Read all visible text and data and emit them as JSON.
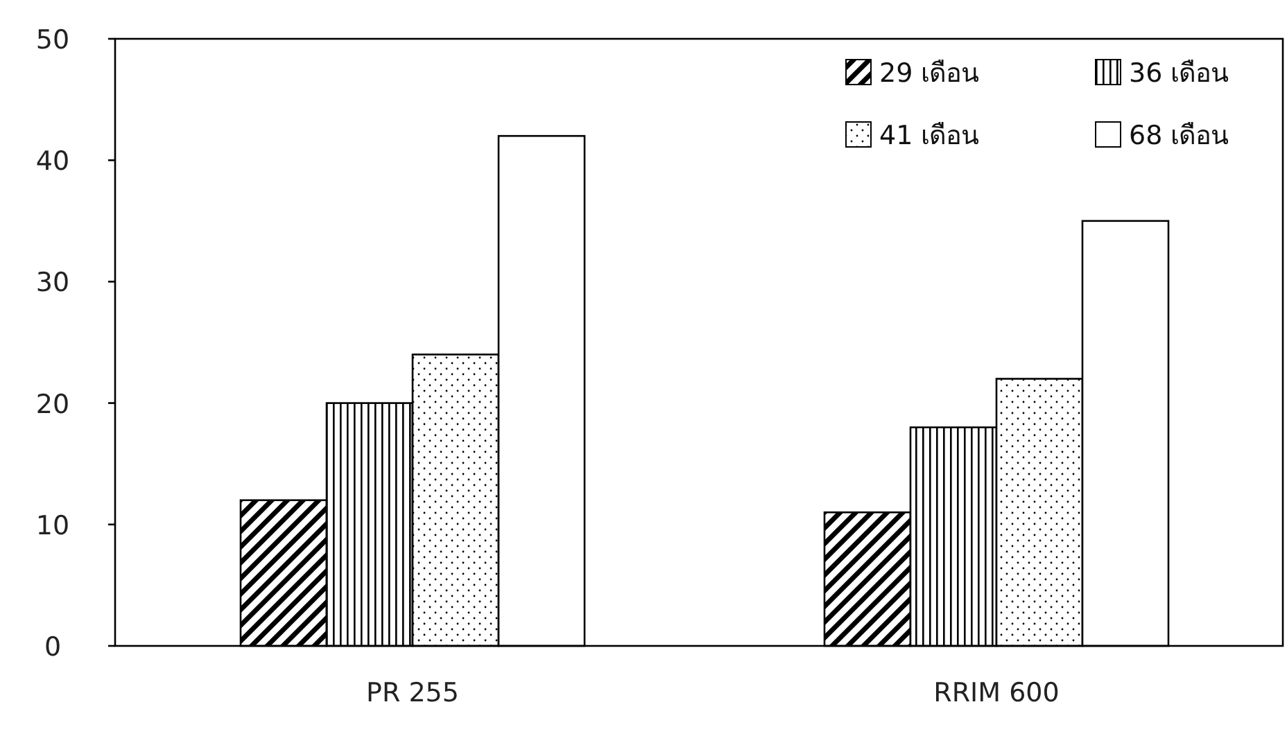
{
  "chart_data": {
    "type": "bar",
    "categories": [
      "PR 255",
      "RRIM 600"
    ],
    "series": [
      {
        "name": "29 เดือน",
        "color": "#000000",
        "values": [
          12,
          11
        ]
      },
      {
        "name": "36 เดือน",
        "color": "#000000",
        "values": [
          20,
          18
        ]
      },
      {
        "name": "41 เดือน",
        "color": "#000000",
        "values": [
          24,
          22
        ]
      },
      {
        "name": "68 เดือน",
        "color": "#000000",
        "values": [
          42,
          35
        ]
      }
    ],
    "ylim": [
      0,
      50
    ],
    "yticks": [
      0,
      10,
      20,
      30,
      40,
      50
    ],
    "grid": false,
    "legend": "top right"
  }
}
